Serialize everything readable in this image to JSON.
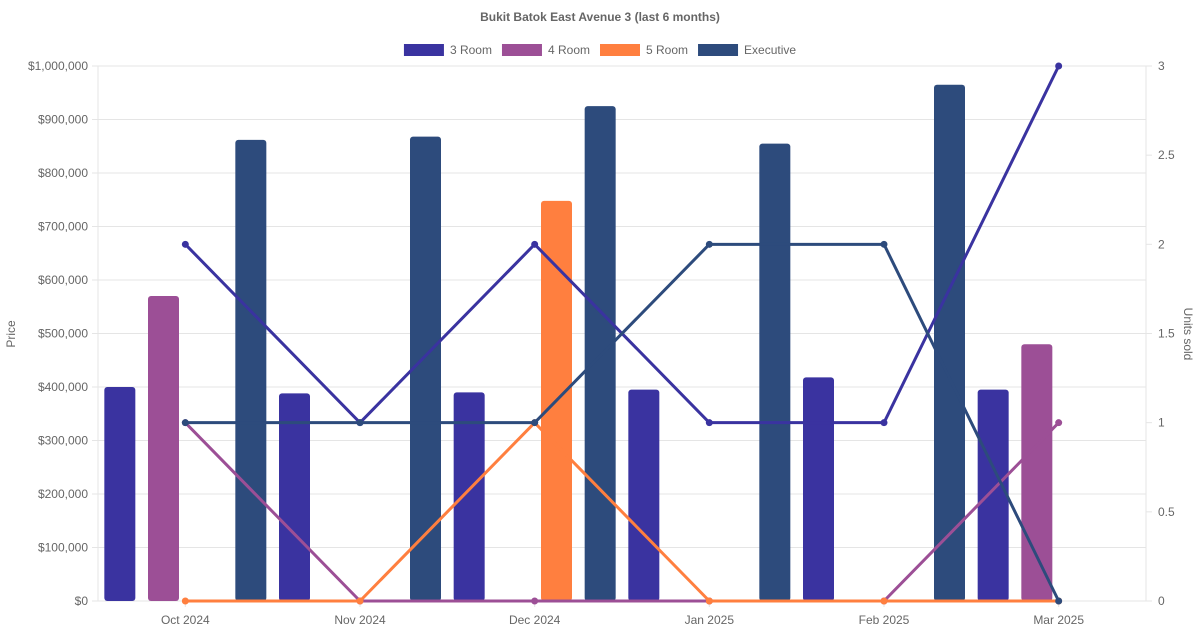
{
  "chart_data": {
    "type": "bar",
    "title": "Bukit Batok East Avenue 3 (last 6 months)",
    "categories": [
      "Oct 2024",
      "Nov 2024",
      "Dec 2024",
      "Jan 2025",
      "Feb 2025",
      "Mar 2025"
    ],
    "ylabel": "Price",
    "y2label": "Units sold",
    "ylim": [
      0,
      1000000
    ],
    "y2lim": [
      0,
      3
    ],
    "yticks": [
      "$0",
      "$100,000",
      "$200,000",
      "$300,000",
      "$400,000",
      "$500,000",
      "$600,000",
      "$700,000",
      "$800,000",
      "$900,000",
      "$1,000,000"
    ],
    "y2ticks": [
      "0",
      "0.5",
      "1",
      "1.5",
      "2",
      "2.5",
      "3"
    ],
    "grid": true,
    "legend_position": "top",
    "series": [
      {
        "name": "3 Room",
        "color": "#3a33a0",
        "price": [
          400000,
          388000,
          390000,
          395000,
          418000,
          395000
        ],
        "units": [
          2,
          1,
          2,
          1,
          1,
          3
        ]
      },
      {
        "name": "4 Room",
        "color": "#9c4f96",
        "price": [
          570000,
          null,
          null,
          null,
          null,
          480000
        ],
        "units": [
          1,
          0,
          0,
          0,
          0,
          1
        ]
      },
      {
        "name": "5 Room",
        "color": "#ff7f3f",
        "price": [
          null,
          null,
          748000,
          null,
          null,
          null
        ],
        "units": [
          0,
          0,
          1,
          0,
          0,
          0
        ]
      },
      {
        "name": "Executive",
        "color": "#2d4b7c",
        "price": [
          862000,
          868000,
          925000,
          855000,
          965000,
          null
        ],
        "units": [
          1,
          1,
          1,
          2,
          2,
          0
        ]
      }
    ]
  }
}
